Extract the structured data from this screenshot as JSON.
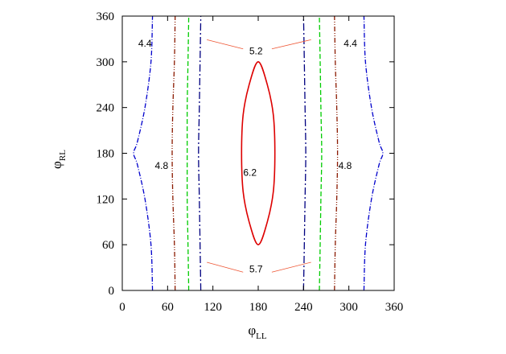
{
  "chart_data": {
    "type": "contour",
    "xlabel": "φ",
    "xlabel_sub": "LL",
    "ylabel": "φ",
    "ylabel_sub": "RL",
    "xlim": [
      0,
      360
    ],
    "ylim": [
      0,
      360
    ],
    "xticks": [
      0,
      60,
      120,
      180,
      240,
      300,
      360
    ],
    "yticks": [
      0,
      60,
      120,
      180,
      240,
      300,
      360
    ],
    "grid": false,
    "series": [
      {
        "level": 4.4,
        "color": "#0000cc",
        "dash": "dash-dot",
        "branches": [
          [
            [
              40,
              0
            ],
            [
              38,
              60
            ],
            [
              30,
              120
            ],
            [
              20,
              165
            ],
            [
              15,
              180
            ],
            [
              20,
              195
            ],
            [
              30,
              240
            ],
            [
              38,
              300
            ],
            [
              40,
              360
            ]
          ],
          [
            [
              320,
              0
            ],
            [
              322,
              60
            ],
            [
              330,
              120
            ],
            [
              340,
              165
            ],
            [
              345,
              180
            ],
            [
              340,
              195
            ],
            [
              330,
              240
            ],
            [
              322,
              300
            ],
            [
              320,
              360
            ]
          ]
        ]
      },
      {
        "level": 4.8,
        "color": "#8b1a00",
        "dash": "dash-dot-dot",
        "branches": [
          [
            [
              70,
              0
            ],
            [
              69,
              60
            ],
            [
              67,
              120
            ],
            [
              66,
              180
            ],
            [
              67,
              240
            ],
            [
              69,
              300
            ],
            [
              70,
              360
            ]
          ],
          [
            [
              281,
              0
            ],
            [
              282,
              60
            ],
            [
              284,
              120
            ],
            [
              285,
              180
            ],
            [
              284,
              240
            ],
            [
              282,
              300
            ],
            [
              281,
              360
            ]
          ]
        ]
      },
      {
        "level": 5.2,
        "color": "#00cc00",
        "dash": "dashed",
        "branches": [
          [
            [
              88,
              0
            ],
            [
              87,
              60
            ],
            [
              86,
              120
            ],
            [
              86,
              180
            ],
            [
              86,
              240
            ],
            [
              87,
              300
            ],
            [
              88,
              360
            ]
          ],
          [
            [
              261,
              0
            ],
            [
              262,
              60
            ],
            [
              263,
              120
            ],
            [
              264,
              180
            ],
            [
              263,
              240
            ],
            [
              262,
              300
            ],
            [
              261,
              360
            ]
          ]
        ]
      },
      {
        "level": 5.7,
        "color": "#000080",
        "dash": "long-dash-dot",
        "branches": [
          [
            [
              104,
              0
            ],
            [
              103,
              60
            ],
            [
              102,
              120
            ],
            [
              101,
              180
            ],
            [
              102,
              240
            ],
            [
              103,
              300
            ],
            [
              104,
              360
            ]
          ],
          [
            [
              240,
              0
            ],
            [
              241,
              60
            ],
            [
              242,
              120
            ],
            [
              243,
              180
            ],
            [
              242,
              240
            ],
            [
              241,
              300
            ],
            [
              240,
              360
            ]
          ]
        ]
      },
      {
        "level": 6.2,
        "color": "#dd0000",
        "dash": "solid",
        "closed": true,
        "branches": [
          [
            [
              180,
              60
            ],
            [
              168,
              90
            ],
            [
              160,
              130
            ],
            [
              158,
              180
            ],
            [
              160,
              230
            ],
            [
              168,
              270
            ],
            [
              180,
              300
            ],
            [
              192,
              270
            ],
            [
              200,
              230
            ],
            [
              202,
              180
            ],
            [
              200,
              130
            ],
            [
              192,
              90
            ],
            [
              180,
              60
            ]
          ]
        ]
      }
    ],
    "annotations": [
      {
        "text": "4.4",
        "x": 30,
        "y": 323
      },
      {
        "text": "4.4",
        "x": 302,
        "y": 323
      },
      {
        "text": "4.8",
        "x": 52,
        "y": 163
      },
      {
        "text": "4.8",
        "x": 295,
        "y": 163
      },
      {
        "text": "5.2",
        "x": 177,
        "y": 313
      },
      {
        "text": "5.7",
        "x": 177,
        "y": 27
      },
      {
        "text": "6.2",
        "x": 169,
        "y": 154
      }
    ],
    "leaders": [
      {
        "from": [
          112,
          329
        ],
        "to": [
          160,
          317
        ]
      },
      {
        "from": [
          250,
          329
        ],
        "to": [
          198,
          317
        ]
      },
      {
        "from": [
          112,
          37
        ],
        "to": [
          160,
          24
        ]
      },
      {
        "from": [
          250,
          37
        ],
        "to": [
          198,
          24
        ]
      }
    ]
  }
}
